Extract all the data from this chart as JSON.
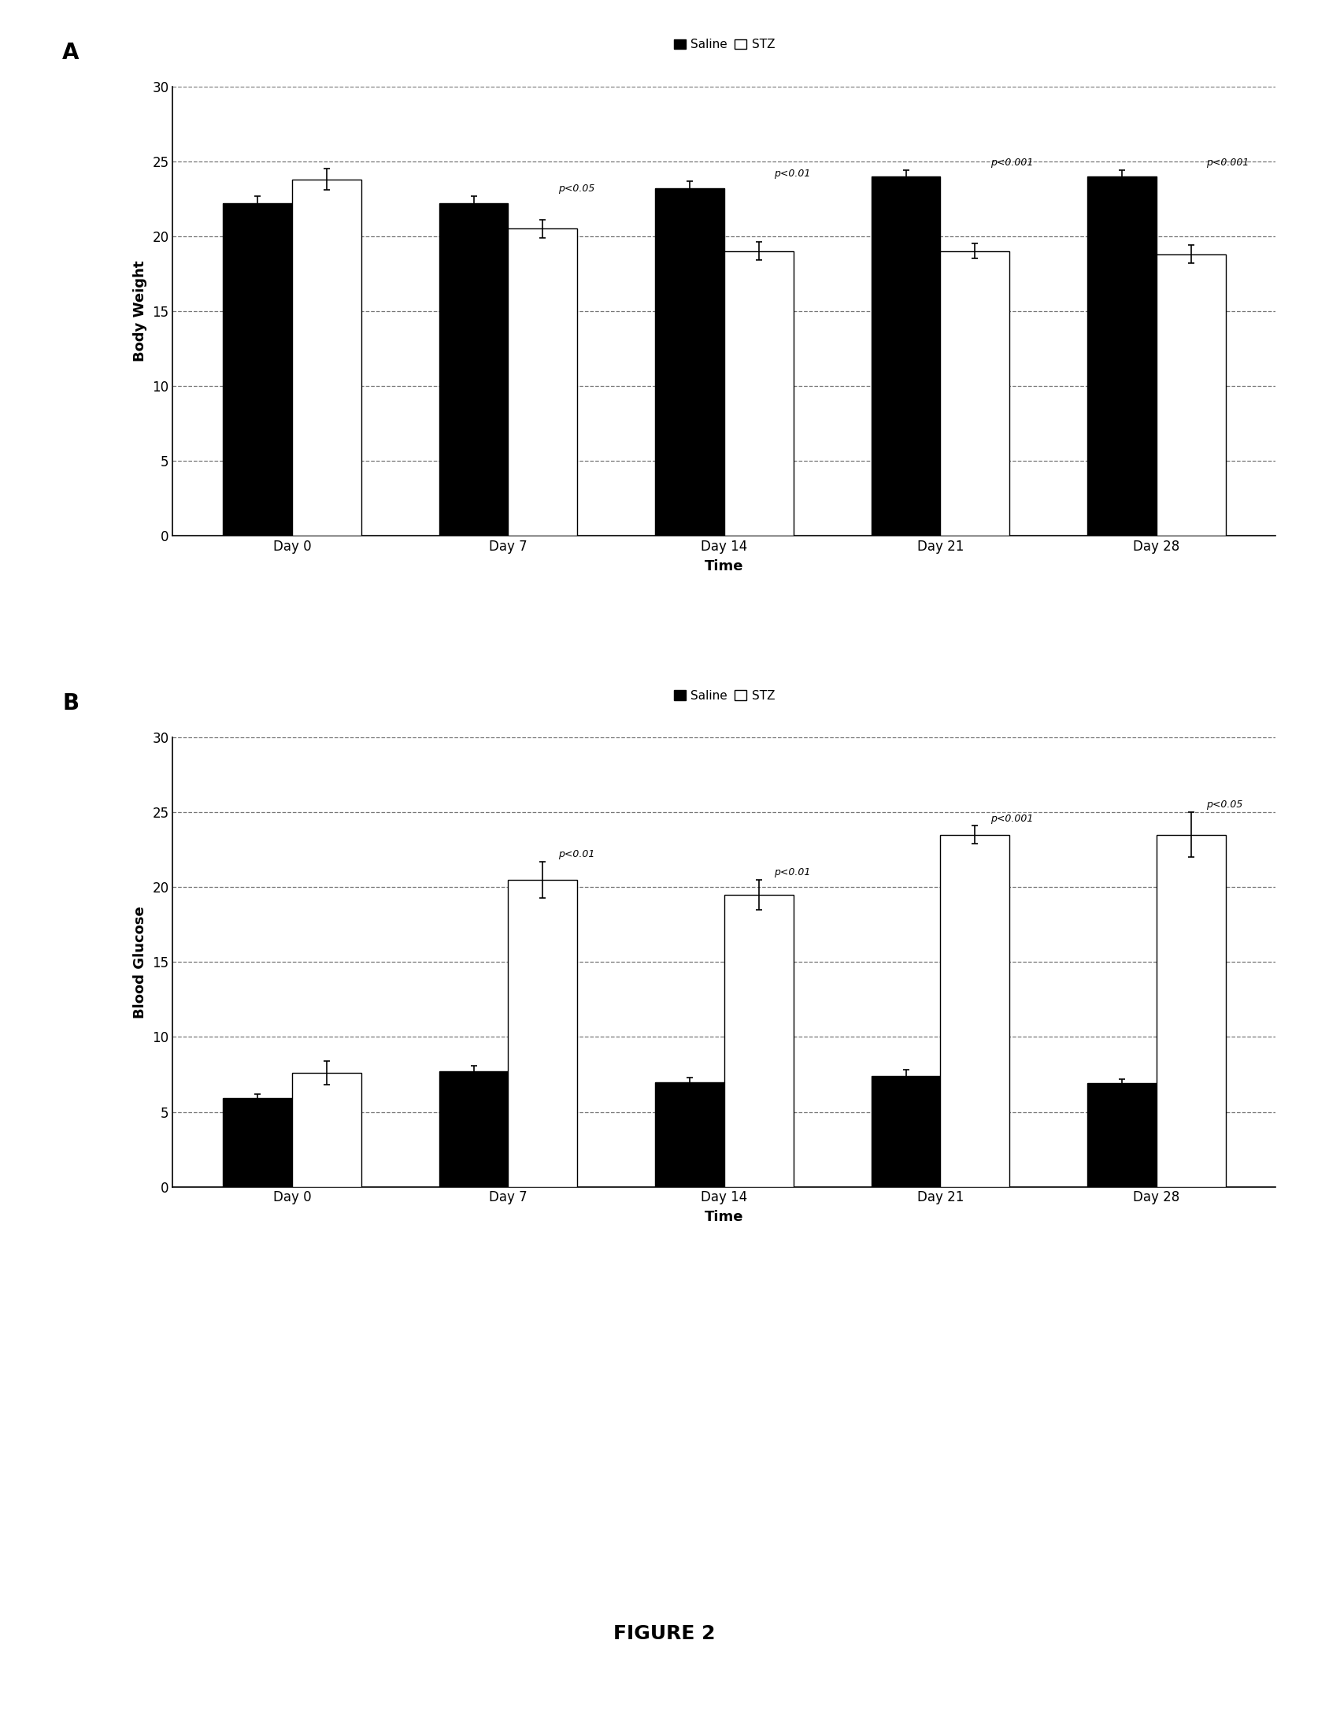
{
  "panel_A": {
    "title_label": "A",
    "ylabel": "Body Weight",
    "xlabel": "Time",
    "categories": [
      "Day 0",
      "Day 7",
      "Day 14",
      "Day 21",
      "Day 28"
    ],
    "saline_values": [
      22.2,
      22.2,
      23.2,
      24.0,
      24.0
    ],
    "stz_values": [
      23.8,
      20.5,
      19.0,
      19.0,
      18.8
    ],
    "saline_errors": [
      0.5,
      0.5,
      0.5,
      0.4,
      0.4
    ],
    "stz_errors": [
      0.7,
      0.6,
      0.6,
      0.5,
      0.6
    ],
    "ylim": [
      0,
      30
    ],
    "yticks": [
      0,
      5,
      10,
      15,
      20,
      25,
      30
    ],
    "pvalues": [
      "",
      "p<0.05",
      "p<0.01",
      "p<0.001",
      "p<0.001"
    ],
    "pvalue_xoffsets": [
      0,
      0.05,
      0.05,
      0.05,
      0.05
    ]
  },
  "panel_B": {
    "title_label": "B",
    "ylabel": "Blood Glucose",
    "xlabel": "Time",
    "categories": [
      "Day 0",
      "Day 7",
      "Day 14",
      "Day 21",
      "Day 28"
    ],
    "saline_values": [
      5.9,
      7.7,
      7.0,
      7.4,
      6.9
    ],
    "stz_values": [
      7.6,
      20.5,
      19.5,
      23.5,
      23.5
    ],
    "saline_errors": [
      0.3,
      0.4,
      0.3,
      0.4,
      0.3
    ],
    "stz_errors": [
      0.8,
      1.2,
      1.0,
      0.6,
      1.5
    ],
    "ylim": [
      0,
      30
    ],
    "yticks": [
      0,
      5,
      10,
      15,
      20,
      25,
      30
    ],
    "pvalues": [
      "",
      "p<0.01",
      "p<0.01",
      "p<0.001",
      "p<0.05"
    ],
    "pvalue_xoffsets": [
      0,
      0.05,
      0.05,
      0.05,
      0.05
    ]
  },
  "legend_labels": [
    "Saline",
    "STZ"
  ],
  "saline_color": "#000000",
  "stz_color": "#ffffff",
  "bar_edge_color": "#000000",
  "bar_width": 0.32,
  "figure_title": "FIGURE 2",
  "background_color": "#ffffff",
  "grid_color": "#777777",
  "grid_style": "--"
}
